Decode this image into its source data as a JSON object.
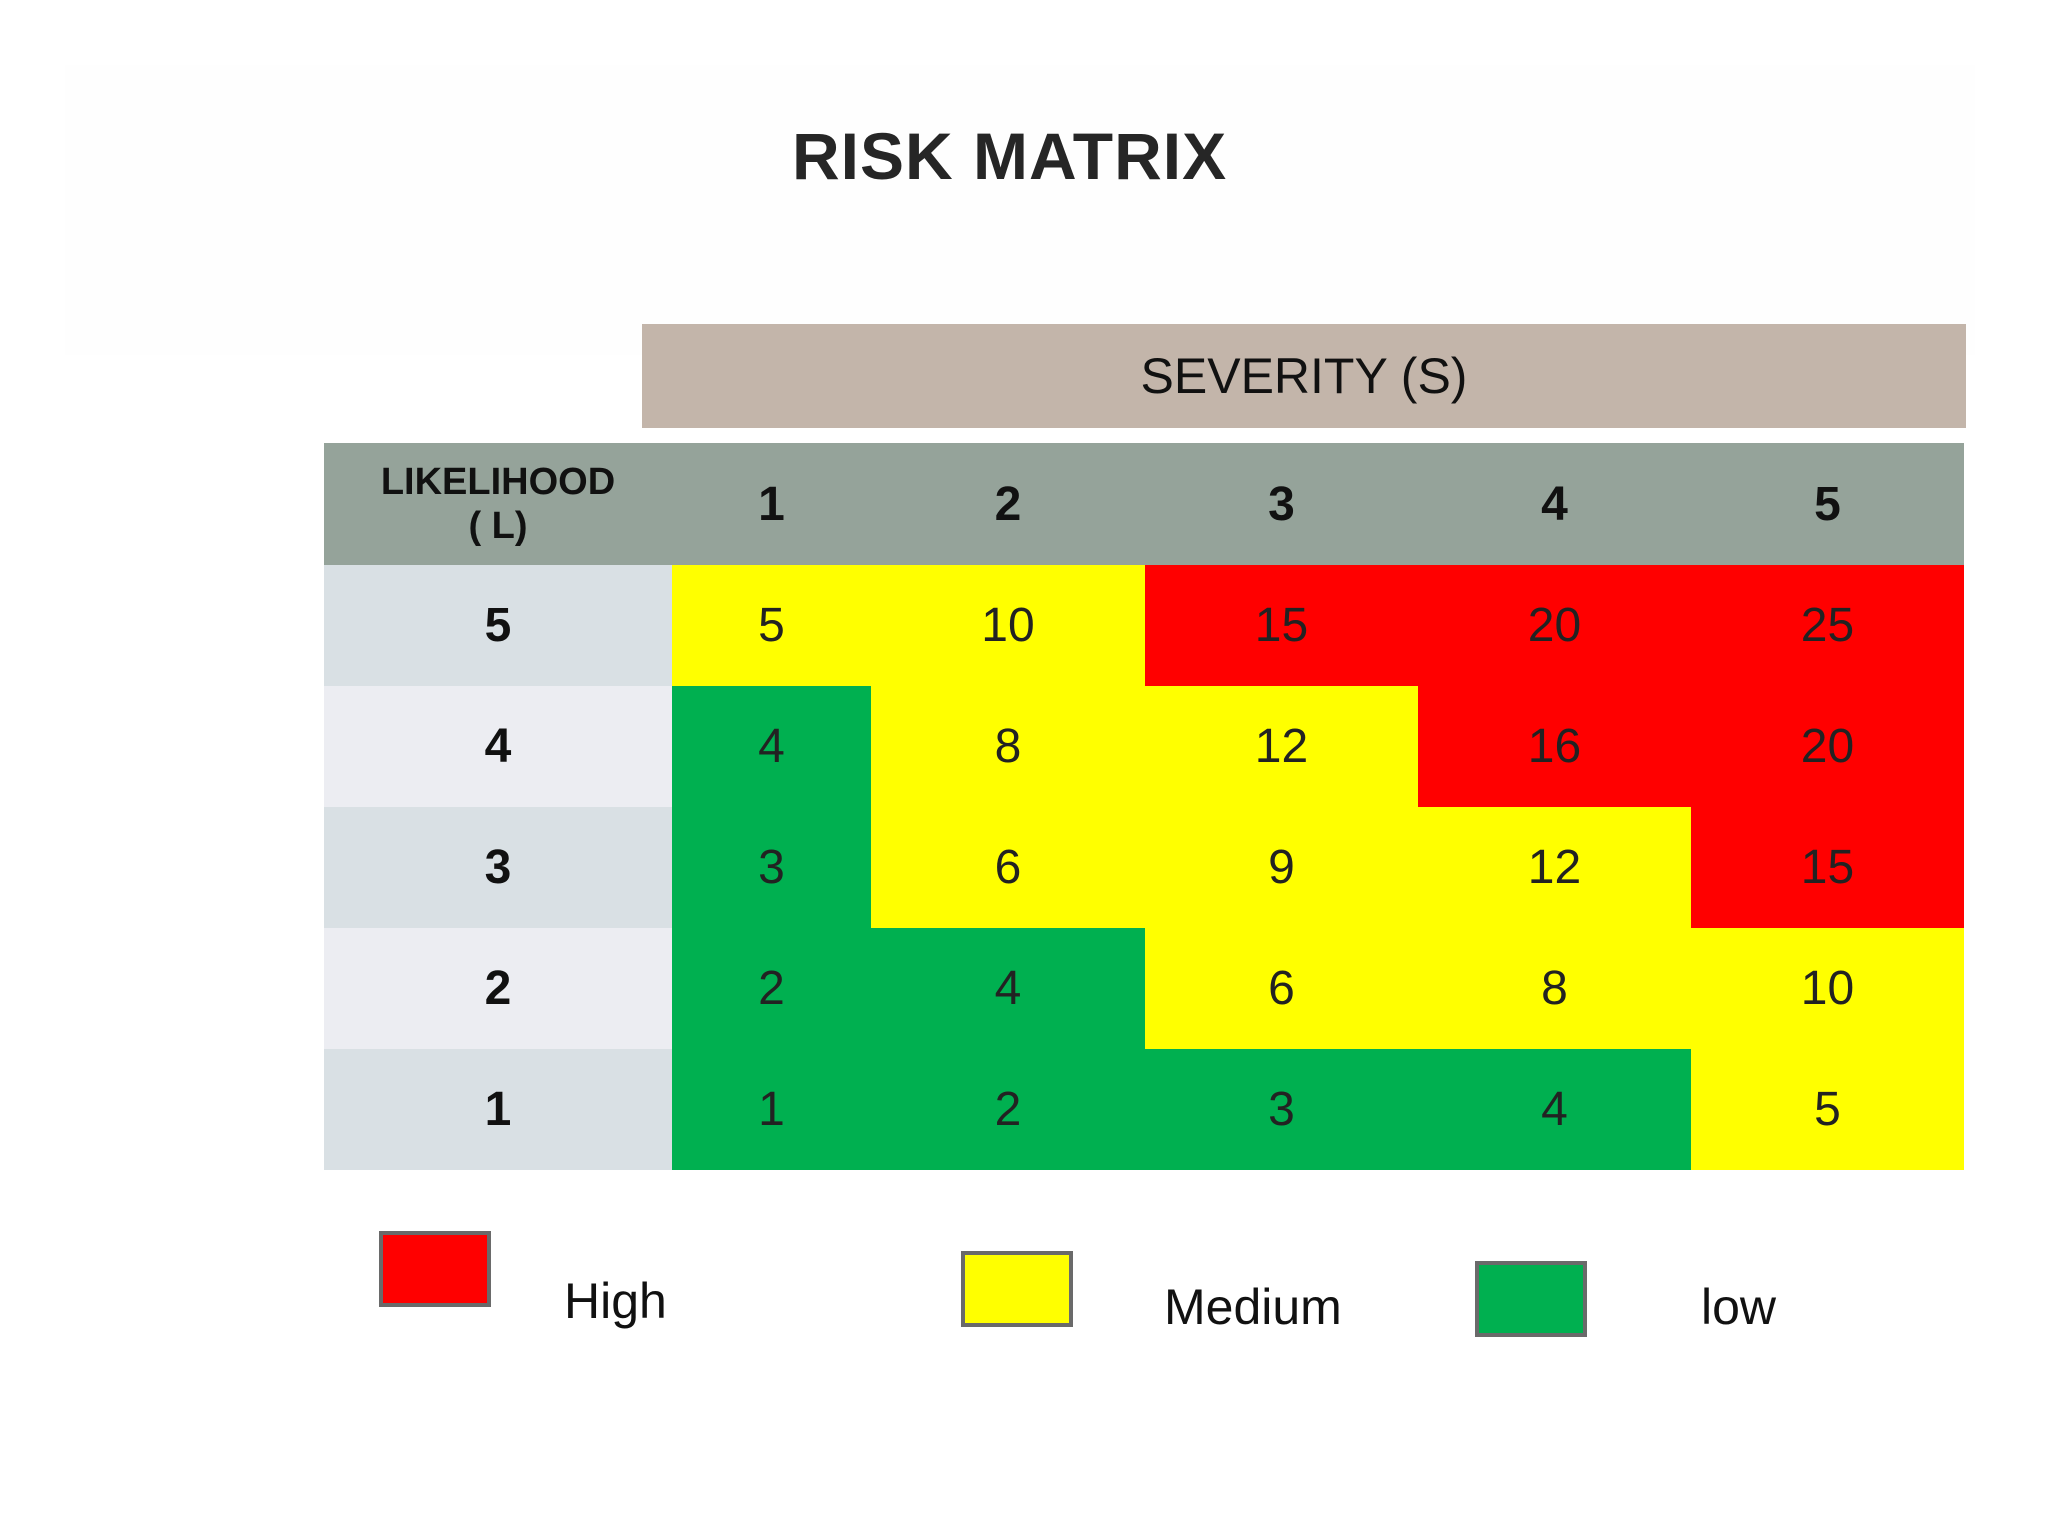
{
  "title": "RISK MATRIX",
  "severity_label": "SEVERITY (S)",
  "likelihood_label_line1": "LIKELIHOOD",
  "likelihood_label_line2": "( L)",
  "severity_levels": [
    "1",
    "2",
    "3",
    "4",
    "5"
  ],
  "rows": [
    {
      "likelihood": "5",
      "values": [
        "5",
        "10",
        "15",
        "20",
        "25"
      ],
      "levels": [
        "medium",
        "medium",
        "high",
        "high",
        "high"
      ]
    },
    {
      "likelihood": "4",
      "values": [
        "4",
        "8",
        "12",
        "16",
        "20"
      ],
      "levels": [
        "low",
        "medium",
        "medium",
        "high",
        "high"
      ]
    },
    {
      "likelihood": "3",
      "values": [
        "3",
        "6",
        "9",
        "12",
        "15"
      ],
      "levels": [
        "low",
        "medium",
        "medium",
        "medium",
        "high"
      ]
    },
    {
      "likelihood": "2",
      "values": [
        "2",
        "4",
        "6",
        "8",
        "10"
      ],
      "levels": [
        "low",
        "low",
        "medium",
        "medium",
        "medium"
      ]
    },
    {
      "likelihood": "1",
      "values": [
        "1",
        "2",
        "3",
        "4",
        "5"
      ],
      "levels": [
        "low",
        "low",
        "low",
        "low",
        "medium"
      ]
    }
  ],
  "legend": {
    "high": "High",
    "medium": "Medium",
    "low": "low"
  },
  "colors": {
    "high": "#ff0000",
    "medium": "#ffff00",
    "low": "#00b050",
    "header": "#95a39a",
    "severity_bar": "#c3b5aa"
  }
}
